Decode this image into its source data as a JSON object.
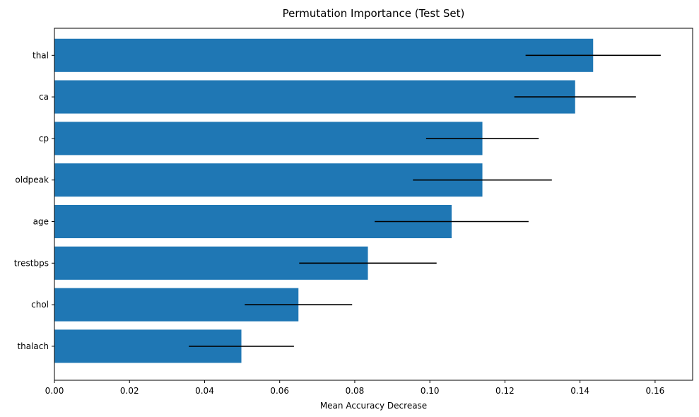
{
  "chart_data": {
    "type": "bar",
    "orientation": "horizontal",
    "title": "Permutation Importance (Test Set)",
    "xlabel": "Mean Accuracy Decrease",
    "ylabel": "",
    "xlim": [
      0,
      0.17
    ],
    "xticks": [
      0.0,
      0.02,
      0.04,
      0.06,
      0.08,
      0.1,
      0.12,
      0.14,
      0.16
    ],
    "xtick_labels": [
      "0.00",
      "0.02",
      "0.04",
      "0.06",
      "0.08",
      "0.10",
      "0.12",
      "0.14",
      "0.16"
    ],
    "categories": [
      "thal",
      "ca",
      "cp",
      "oldpeak",
      "age",
      "trestbps",
      "chol",
      "thalach"
    ],
    "values": [
      0.1435,
      0.1387,
      0.114,
      0.114,
      0.1058,
      0.0835,
      0.065,
      0.0498
    ],
    "errors": [
      0.018,
      0.0162,
      0.015,
      0.0185,
      0.0205,
      0.0183,
      0.0143,
      0.014
    ],
    "grid": false,
    "colors": {
      "bar": "#1f77b4",
      "error_bar": "#000000",
      "axis": "#000000"
    }
  }
}
